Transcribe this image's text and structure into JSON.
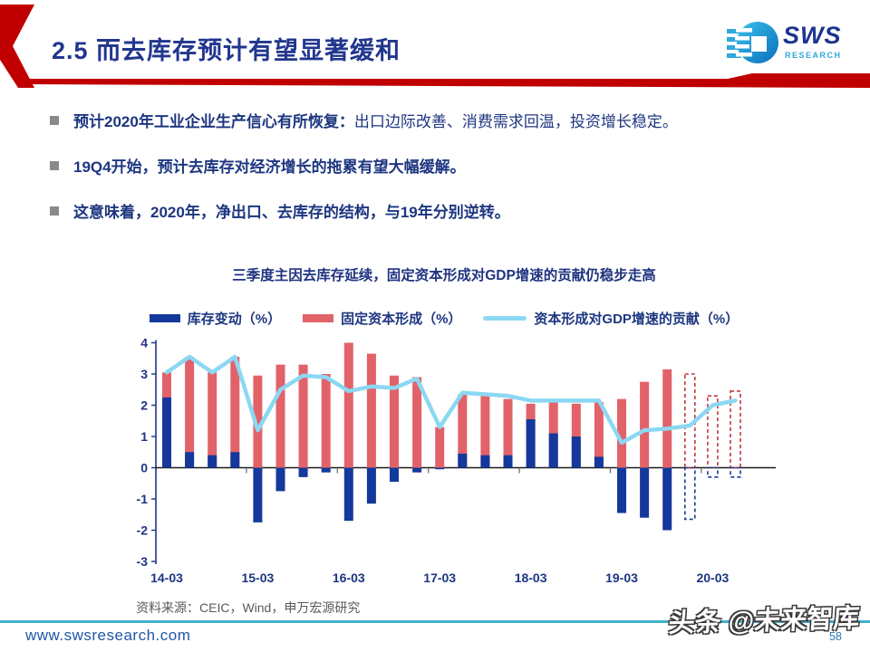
{
  "header": {
    "title": "2.5 而去库存预计有望显著缓和",
    "logo_text": "SWS",
    "logo_subtext": "RESEARCH"
  },
  "bullets": [
    {
      "lead": "预计2020年工业企业生产信心有所恢复：",
      "rest": "出口边际改善、消费需求回温，投资增长稳定。"
    },
    {
      "lead": "19Q4开始，预计去库存对经济增长的拖累有望大幅缓解。",
      "rest": ""
    },
    {
      "lead": "这意味着，2020年，净出口、去库存的结构，与19年分别逆转。",
      "rest": ""
    }
  ],
  "chart_data": {
    "type": "combo",
    "title": "三季度主因去库存延续，固定资本形成对GDP增速的贡献仍稳步走高",
    "x": [
      "14-03",
      "14-06",
      "14-09",
      "14-12",
      "15-03",
      "15-06",
      "15-09",
      "15-12",
      "16-03",
      "16-06",
      "16-09",
      "16-12",
      "17-03",
      "17-06",
      "17-09",
      "17-12",
      "18-03",
      "18-06",
      "18-09",
      "18-12",
      "19-03",
      "19-06",
      "19-09",
      "19-12",
      "20-03",
      "20-06"
    ],
    "x_tick_labels": [
      "14-03",
      "15-03",
      "16-03",
      "17-03",
      "18-03",
      "19-03",
      "20-03"
    ],
    "yticks": [
      4,
      3,
      2,
      1,
      0,
      -1,
      -2,
      -3
    ],
    "ylim": [
      -3,
      4
    ],
    "grid": "off",
    "legend_position": "top",
    "forecast_start_index": 23,
    "series": [
      {
        "name": "库存变动（%）",
        "type": "bar",
        "color": "#14389B",
        "forecast_stroke": "#1C3C96",
        "values": [
          2.25,
          0.5,
          0.4,
          0.5,
          -1.75,
          -0.75,
          -0.3,
          -0.15,
          -1.7,
          -1.15,
          -0.45,
          -0.15,
          -0.05,
          0.45,
          0.4,
          0.4,
          1.55,
          1.1,
          1.0,
          0.35,
          -1.45,
          -1.6,
          -2.0,
          -1.65,
          -0.3,
          -0.3
        ]
      },
      {
        "name": "固定资本形成（%）",
        "type": "bar",
        "color": "#E2626A",
        "forecast_stroke": "#C13A3E",
        "values": [
          3.05,
          3.55,
          3.05,
          3.55,
          2.95,
          3.3,
          3.3,
          3.0,
          4.0,
          3.65,
          2.95,
          2.9,
          1.3,
          2.35,
          2.35,
          2.2,
          2.05,
          2.1,
          2.05,
          2.1,
          2.2,
          2.75,
          3.15,
          3.0,
          2.3,
          2.45
        ]
      },
      {
        "name": "资本形成对GDP增速的贡献（%）",
        "type": "line",
        "color": "#8BD8F2",
        "values": [
          3.05,
          3.55,
          3.05,
          3.55,
          1.2,
          2.5,
          2.95,
          2.9,
          2.45,
          2.6,
          2.55,
          2.85,
          1.3,
          2.4,
          2.35,
          2.3,
          2.15,
          2.15,
          2.15,
          2.15,
          0.8,
          1.2,
          1.25,
          1.35,
          2.0,
          2.15
        ]
      }
    ],
    "axis_color": "#1D3680",
    "zero_line_color": "#1a1a1a"
  },
  "footer": {
    "source": "资料来源：CEIC，Wind，申万宏源研究",
    "website": "www.swsresearch.com",
    "watermark": "头条 @未来智库",
    "page_number": "58"
  }
}
